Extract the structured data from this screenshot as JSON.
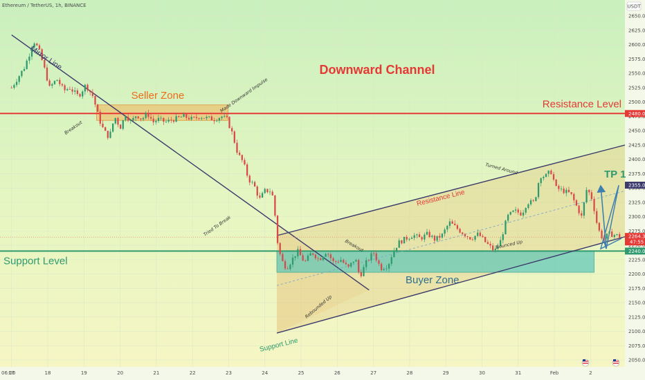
{
  "chart_data": {
    "type": "candlestick",
    "title": "Ethereum / TetherUS, 1h, BINANCE",
    "currency_badge": "USDT",
    "headline": "Downward Channel",
    "x_ticks": [
      "06:00",
      "17",
      "18",
      "19",
      "20",
      "21",
      "22",
      "23",
      "24",
      "25",
      "26",
      "27",
      "28",
      "29",
      "30",
      "31",
      "Feb",
      "2"
    ],
    "y_ticks": [
      2650,
      2625,
      2600,
      2575,
      2550,
      2525,
      2500,
      2475,
      2450,
      2425,
      2400,
      2375,
      2350,
      2325,
      2300,
      2275,
      2250,
      2225,
      2200,
      2175,
      2150,
      2125,
      2100,
      2075,
      2050
    ],
    "y_tick_labels": [
      "2650.00",
      "2625.00",
      "2600.00",
      "2575.00",
      "2550.00",
      "2525.00",
      "2500.00",
      "2475.00",
      "2450.00",
      "2425.00",
      "2400.00",
      "2375.00",
      "2350.00",
      "2325.00",
      "2300.00",
      "2275.00",
      "2250.00",
      "2225.00",
      "2200.00",
      "2175.00",
      "2150.00",
      "2125.00",
      "2100.00",
      "2075.00",
      "2050.00"
    ],
    "ylim": [
      2038,
      2678
    ],
    "xlim": [
      -0.32,
      16.95
    ],
    "price_path": [
      [
        0.0,
        2525
      ],
      [
        0.2,
        2545
      ],
      [
        0.35,
        2560
      ],
      [
        0.5,
        2585
      ],
      [
        0.6,
        2608
      ],
      [
        0.75,
        2592
      ],
      [
        0.9,
        2560
      ],
      [
        1.05,
        2525
      ],
      [
        1.25,
        2540
      ],
      [
        1.45,
        2520
      ],
      [
        1.6,
        2525
      ],
      [
        1.85,
        2510
      ],
      [
        2.05,
        2530
      ],
      [
        2.25,
        2510
      ],
      [
        2.42,
        2470
      ],
      [
        2.55,
        2450
      ],
      [
        2.7,
        2438
      ],
      [
        2.85,
        2475
      ],
      [
        3.0,
        2455
      ],
      [
        3.15,
        2478
      ],
      [
        3.3,
        2465
      ],
      [
        3.45,
        2478
      ],
      [
        3.6,
        2470
      ],
      [
        3.75,
        2480
      ],
      [
        3.92,
        2465
      ],
      [
        4.05,
        2470
      ],
      [
        4.25,
        2465
      ],
      [
        4.5,
        2470
      ],
      [
        4.75,
        2475
      ],
      [
        5.0,
        2470
      ],
      [
        5.2,
        2475
      ],
      [
        5.4,
        2472
      ],
      [
        5.6,
        2470
      ],
      [
        5.8,
        2475
      ],
      [
        5.95,
        2470
      ],
      [
        6.1,
        2445
      ],
      [
        6.25,
        2410
      ],
      [
        6.4,
        2395
      ],
      [
        6.55,
        2365
      ],
      [
        6.7,
        2355
      ],
      [
        6.85,
        2330
      ],
      [
        7.0,
        2345
      ],
      [
        7.15,
        2345
      ],
      [
        7.25,
        2330
      ],
      [
        7.32,
        2265
      ],
      [
        7.45,
        2225
      ],
      [
        7.6,
        2210
      ],
      [
        7.75,
        2225
      ],
      [
        7.9,
        2240
      ],
      [
        8.1,
        2220
      ],
      [
        8.3,
        2238
      ],
      [
        8.5,
        2225
      ],
      [
        8.7,
        2240
      ],
      [
        8.9,
        2220
      ],
      [
        9.1,
        2225
      ],
      [
        9.3,
        2210
      ],
      [
        9.5,
        2228
      ],
      [
        9.62,
        2195
      ],
      [
        9.8,
        2220
      ],
      [
        10.0,
        2238
      ],
      [
        10.2,
        2210
      ],
      [
        10.4,
        2215
      ],
      [
        10.55,
        2240
      ],
      [
        10.7,
        2255
      ],
      [
        10.9,
        2262
      ],
      [
        11.1,
        2268
      ],
      [
        11.3,
        2262
      ],
      [
        11.5,
        2270
      ],
      [
        11.7,
        2260
      ],
      [
        11.9,
        2268
      ],
      [
        12.1,
        2290
      ],
      [
        12.3,
        2280
      ],
      [
        12.5,
        2270
      ],
      [
        12.7,
        2262
      ],
      [
        12.9,
        2270
      ],
      [
        13.1,
        2255
      ],
      [
        13.35,
        2240
      ],
      [
        13.5,
        2255
      ],
      [
        13.7,
        2300
      ],
      [
        13.9,
        2310
      ],
      [
        14.1,
        2305
      ],
      [
        14.25,
        2325
      ],
      [
        14.45,
        2325
      ],
      [
        14.6,
        2372
      ],
      [
        14.75,
        2370
      ],
      [
        14.9,
        2380
      ],
      [
        15.05,
        2350
      ],
      [
        15.25,
        2345
      ],
      [
        15.45,
        2340
      ],
      [
        15.6,
        2320
      ],
      [
        15.75,
        2300
      ],
      [
        15.9,
        2350
      ],
      [
        16.05,
        2330
      ],
      [
        16.2,
        2280
      ],
      [
        16.35,
        2260
      ],
      [
        16.5,
        2270
      ],
      [
        16.7,
        2268
      ],
      [
        16.85,
        2264
      ]
    ],
    "levels": [
      {
        "label": "Resistance Level",
        "value": 2480,
        "tag": "2480.00",
        "color": "#e53935"
      },
      {
        "label": "Support Level",
        "value": 2240,
        "tag": "2240.00",
        "color": "#2e9a6e"
      }
    ],
    "current_price": {
      "value": 2264.37,
      "tag": "2264.37",
      "countdown": "47:55",
      "color": "#e53935"
    },
    "tp": {
      "label": "TP 1",
      "value": 2355,
      "tag": "2355.00"
    },
    "zones": [
      {
        "label": "Seller Zone",
        "x0": 2.35,
        "x1": 5.98,
        "y_top": 2495,
        "y_bottom": 2468
      },
      {
        "label": "Buyer Zone",
        "x0": 7.33,
        "x1": 16.1,
        "y_top": 2240,
        "y_bottom": 2203
      }
    ],
    "lines": [
      {
        "label": "Mirror Line",
        "from": [
          0.0,
          2617
        ],
        "to": [
          9.88,
          2172
        ]
      },
      {
        "label": "Resistance Line",
        "from": [
          7.33,
          2267
        ],
        "to": [
          16.95,
          2425
        ]
      },
      {
        "label": "Support Line",
        "from": [
          7.33,
          2097
        ],
        "to": [
          16.95,
          2265
        ]
      }
    ],
    "annotations": [
      "Breakout",
      "Made Downward Impulse",
      "Tried To Break",
      "Rebounded Up",
      "Breakout",
      "Turned Around",
      "Bounced Up"
    ]
  }
}
